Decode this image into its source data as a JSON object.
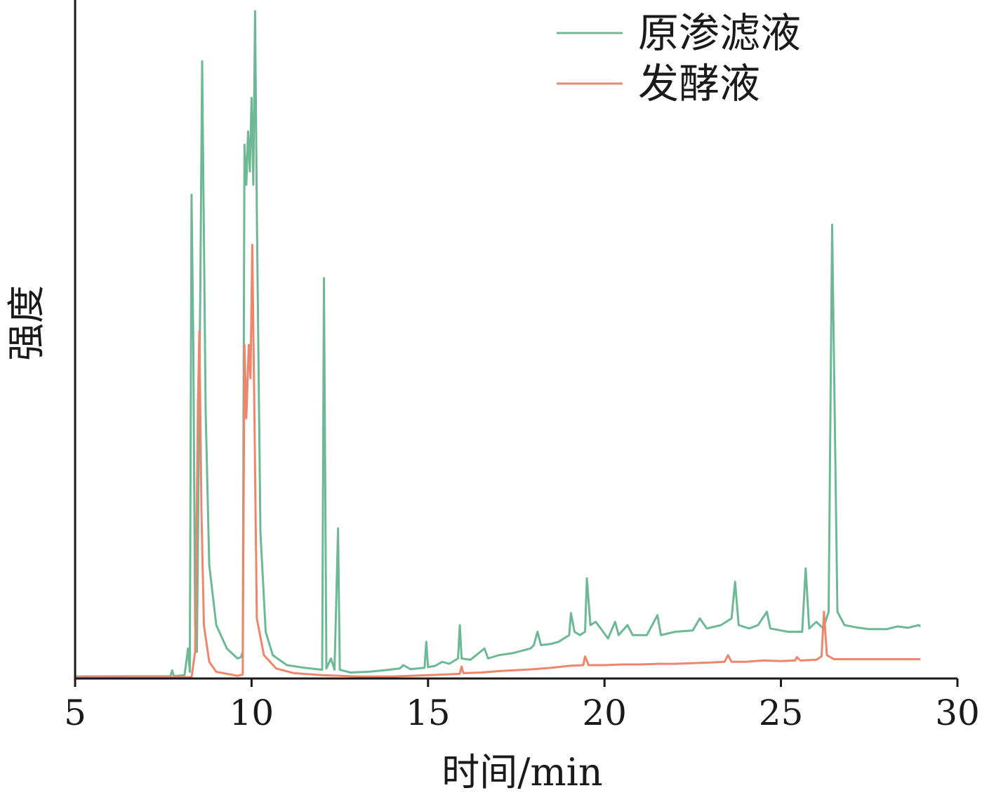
{
  "chart_data": {
    "type": "line",
    "xlabel": "时间/min",
    "ylabel": "强度",
    "xlim": [
      5,
      30
    ],
    "ylim": [
      0,
      100
    ],
    "x_ticks": [
      5,
      10,
      15,
      20,
      25,
      30
    ],
    "tick_labels": [
      "5",
      "10",
      "15",
      "20",
      "25",
      "30"
    ],
    "grid": false,
    "legend_position": "top-right",
    "series": [
      {
        "name": "原渗滤液",
        "color": "#6db895",
        "points": [
          [
            5.0,
            0.3
          ],
          [
            7.7,
            0.35
          ],
          [
            7.75,
            1.2
          ],
          [
            7.8,
            0.35
          ],
          [
            8.1,
            0.5
          ],
          [
            8.2,
            4.5
          ],
          [
            8.25,
            1.0
          ],
          [
            8.3,
            72.5
          ],
          [
            8.35,
            50.0
          ],
          [
            8.4,
            8.0
          ],
          [
            8.45,
            4.0
          ],
          [
            8.55,
            60.0
          ],
          [
            8.6,
            92.5
          ],
          [
            8.7,
            40.0
          ],
          [
            8.8,
            17.0
          ],
          [
            9.0,
            8.0
          ],
          [
            9.3,
            4.5
          ],
          [
            9.6,
            3.0
          ],
          [
            9.7,
            3.2
          ],
          [
            9.75,
            4.0
          ],
          [
            9.8,
            80.0
          ],
          [
            9.85,
            74.0
          ],
          [
            9.9,
            82.0
          ],
          [
            9.95,
            76.0
          ],
          [
            10.0,
            87.0
          ],
          [
            10.05,
            74.0
          ],
          [
            10.1,
            100.0
          ],
          [
            10.15,
            70.0
          ],
          [
            10.25,
            22.0
          ],
          [
            10.4,
            7.0
          ],
          [
            10.6,
            3.5
          ],
          [
            11.0,
            2.0
          ],
          [
            11.5,
            1.6
          ],
          [
            12.0,
            1.3
          ],
          [
            12.05,
            60.0
          ],
          [
            12.12,
            1.5
          ],
          [
            12.25,
            3.0
          ],
          [
            12.35,
            1.3
          ],
          [
            12.45,
            22.5
          ],
          [
            12.5,
            1.3
          ],
          [
            12.8,
            0.9
          ],
          [
            13.3,
            1.0
          ],
          [
            13.7,
            1.2
          ],
          [
            14.2,
            1.5
          ],
          [
            14.3,
            2.0
          ],
          [
            14.5,
            1.4
          ],
          [
            14.9,
            1.6
          ],
          [
            14.95,
            5.5
          ],
          [
            15.0,
            1.7
          ],
          [
            15.2,
            1.9
          ],
          [
            15.4,
            2.5
          ],
          [
            15.6,
            2.2
          ],
          [
            15.85,
            3.0
          ],
          [
            15.9,
            8.0
          ],
          [
            15.95,
            3.0
          ],
          [
            16.2,
            2.8
          ],
          [
            16.6,
            4.5
          ],
          [
            16.7,
            3.0
          ],
          [
            17.0,
            3.5
          ],
          [
            17.4,
            3.8
          ],
          [
            17.9,
            4.5
          ],
          [
            18.0,
            5.0
          ],
          [
            18.1,
            7.0
          ],
          [
            18.2,
            5.0
          ],
          [
            18.5,
            5.2
          ],
          [
            18.7,
            5.5
          ],
          [
            19.0,
            6.5
          ],
          [
            19.05,
            9.8
          ],
          [
            19.15,
            7.0
          ],
          [
            19.3,
            6.5
          ],
          [
            19.45,
            7.0
          ],
          [
            19.5,
            15.0
          ],
          [
            19.6,
            8.0
          ],
          [
            19.75,
            8.5
          ],
          [
            19.85,
            7.8
          ],
          [
            20.1,
            6.0
          ],
          [
            20.3,
            8.5
          ],
          [
            20.4,
            6.5
          ],
          [
            20.65,
            8.0
          ],
          [
            20.8,
            6.5
          ],
          [
            21.2,
            6.5
          ],
          [
            21.5,
            9.5
          ],
          [
            21.6,
            6.5
          ],
          [
            22.0,
            7.0
          ],
          [
            22.5,
            7.2
          ],
          [
            22.7,
            9.0
          ],
          [
            22.9,
            7.5
          ],
          [
            23.3,
            8.0
          ],
          [
            23.6,
            9.0
          ],
          [
            23.7,
            14.5
          ],
          [
            23.8,
            8.0
          ],
          [
            24.1,
            7.5
          ],
          [
            24.35,
            8.0
          ],
          [
            24.6,
            10.0
          ],
          [
            24.7,
            7.5
          ],
          [
            25.2,
            7.0
          ],
          [
            25.6,
            7.0
          ],
          [
            25.7,
            16.5
          ],
          [
            25.8,
            7.5
          ],
          [
            26.0,
            8.5
          ],
          [
            26.2,
            7.5
          ],
          [
            26.35,
            10.0
          ],
          [
            26.45,
            68.0
          ],
          [
            26.6,
            10.0
          ],
          [
            26.8,
            8.0
          ],
          [
            27.2,
            7.6
          ],
          [
            27.5,
            7.4
          ],
          [
            28.0,
            7.4
          ],
          [
            28.3,
            7.8
          ],
          [
            28.6,
            7.6
          ],
          [
            28.9,
            8.0
          ],
          [
            28.95,
            7.8
          ]
        ]
      },
      {
        "name": "发酵液",
        "color": "#ee866b",
        "points": [
          [
            5.0,
            0.2
          ],
          [
            8.3,
            0.2
          ],
          [
            8.4,
            4.0
          ],
          [
            8.48,
            41.0
          ],
          [
            8.52,
            52.0
          ],
          [
            8.58,
            25.0
          ],
          [
            8.65,
            8.0
          ],
          [
            8.8,
            2.5
          ],
          [
            9.0,
            1.0
          ],
          [
            9.6,
            0.4
          ],
          [
            9.75,
            0.6
          ],
          [
            9.8,
            50.0
          ],
          [
            9.85,
            39.0
          ],
          [
            9.92,
            50.0
          ],
          [
            9.97,
            45.0
          ],
          [
            10.02,
            65.0
          ],
          [
            10.08,
            40.0
          ],
          [
            10.15,
            9.0
          ],
          [
            10.35,
            3.5
          ],
          [
            10.7,
            1.5
          ],
          [
            11.2,
            0.8
          ],
          [
            12.0,
            0.5
          ],
          [
            13.0,
            0.3
          ],
          [
            14.0,
            0.3
          ],
          [
            15.0,
            0.5
          ],
          [
            15.9,
            0.7
          ],
          [
            15.95,
            1.8
          ],
          [
            16.0,
            0.8
          ],
          [
            16.5,
            0.9
          ],
          [
            17.0,
            1.1
          ],
          [
            18.0,
            1.4
          ],
          [
            18.5,
            1.6
          ],
          [
            19.0,
            1.9
          ],
          [
            19.4,
            2.0
          ],
          [
            19.45,
            3.3
          ],
          [
            19.55,
            2.0
          ],
          [
            20.0,
            2.0
          ],
          [
            20.5,
            2.1
          ],
          [
            21.0,
            2.1
          ],
          [
            21.5,
            2.2
          ],
          [
            22.0,
            2.2
          ],
          [
            22.5,
            2.3
          ],
          [
            23.0,
            2.4
          ],
          [
            23.4,
            2.5
          ],
          [
            23.5,
            3.5
          ],
          [
            23.6,
            2.5
          ],
          [
            24.0,
            2.5
          ],
          [
            24.5,
            2.7
          ],
          [
            25.0,
            2.6
          ],
          [
            25.4,
            2.7
          ],
          [
            25.45,
            3.2
          ],
          [
            25.55,
            2.7
          ],
          [
            26.0,
            2.8
          ],
          [
            26.15,
            3.3
          ],
          [
            26.22,
            10.0
          ],
          [
            26.3,
            3.5
          ],
          [
            26.5,
            2.9
          ],
          [
            27.0,
            2.9
          ],
          [
            28.0,
            2.9
          ],
          [
            28.95,
            2.9
          ]
        ]
      }
    ]
  }
}
